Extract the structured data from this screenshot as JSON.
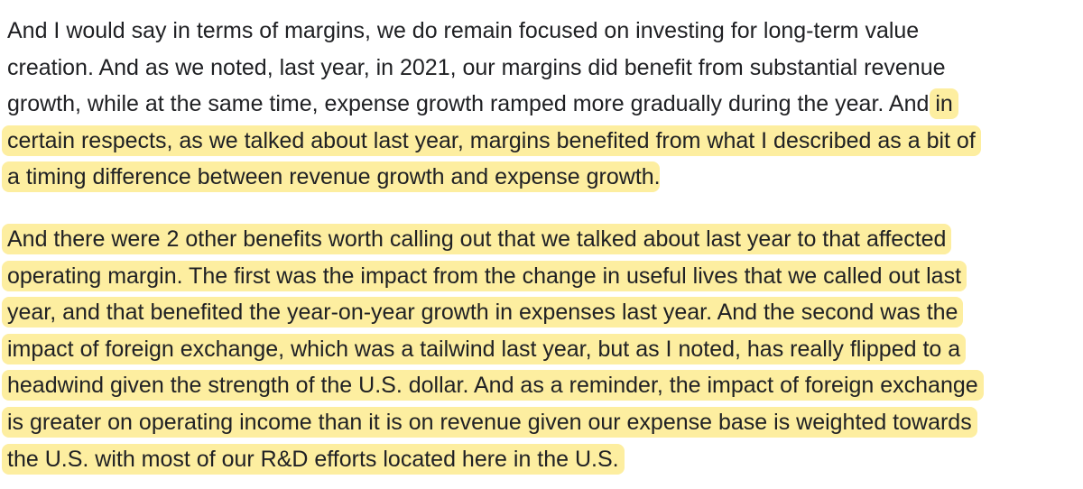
{
  "colors": {
    "text": "#202124",
    "highlight": "#fdeea0",
    "background": "#ffffff"
  },
  "paragraphs": [
    {
      "lines": [
        {
          "plain": "And I would say in terms of margins, we do remain focused on investing for long-term value",
          "highlighted": ""
        },
        {
          "plain": "creation. And as we noted, last year, in 2021, our margins did benefit from substantial revenue",
          "highlighted": ""
        },
        {
          "plain": "growth, while at the same time, expense growth ramped more gradually during the year. And ",
          "highlighted": "in"
        },
        {
          "plain": "",
          "highlighted": "certain respects, as we talked about last year, margins benefited from what I described as a bit of"
        },
        {
          "plain": "",
          "highlighted": "a timing difference between revenue growth and expense growth",
          "trailing": "."
        }
      ]
    },
    {
      "lines": [
        {
          "plain": "",
          "highlighted": "And there were 2 other benefits worth calling out that we talked about last year to that affected"
        },
        {
          "plain": "",
          "highlighted": "operating margin. The first was the impact from the change in useful lives that we called out last"
        },
        {
          "plain": "",
          "highlighted": "year, and that benefited the year-on-year growth in expenses last year. And the second was the"
        },
        {
          "plain": "",
          "highlighted": "impact of foreign exchange, which was a tailwind last year, but as I noted, has really flipped to a"
        },
        {
          "plain": "",
          "highlighted": "headwind given the strength of the U.S. dollar. And as a reminder, the impact of foreign exchange"
        },
        {
          "plain": "",
          "highlighted": "is greater on operating income than it is on revenue given our expense base is weighted towards"
        },
        {
          "plain": "",
          "highlighted": "the U.S. with most of our R&D efforts located here in the U.S."
        }
      ]
    }
  ]
}
